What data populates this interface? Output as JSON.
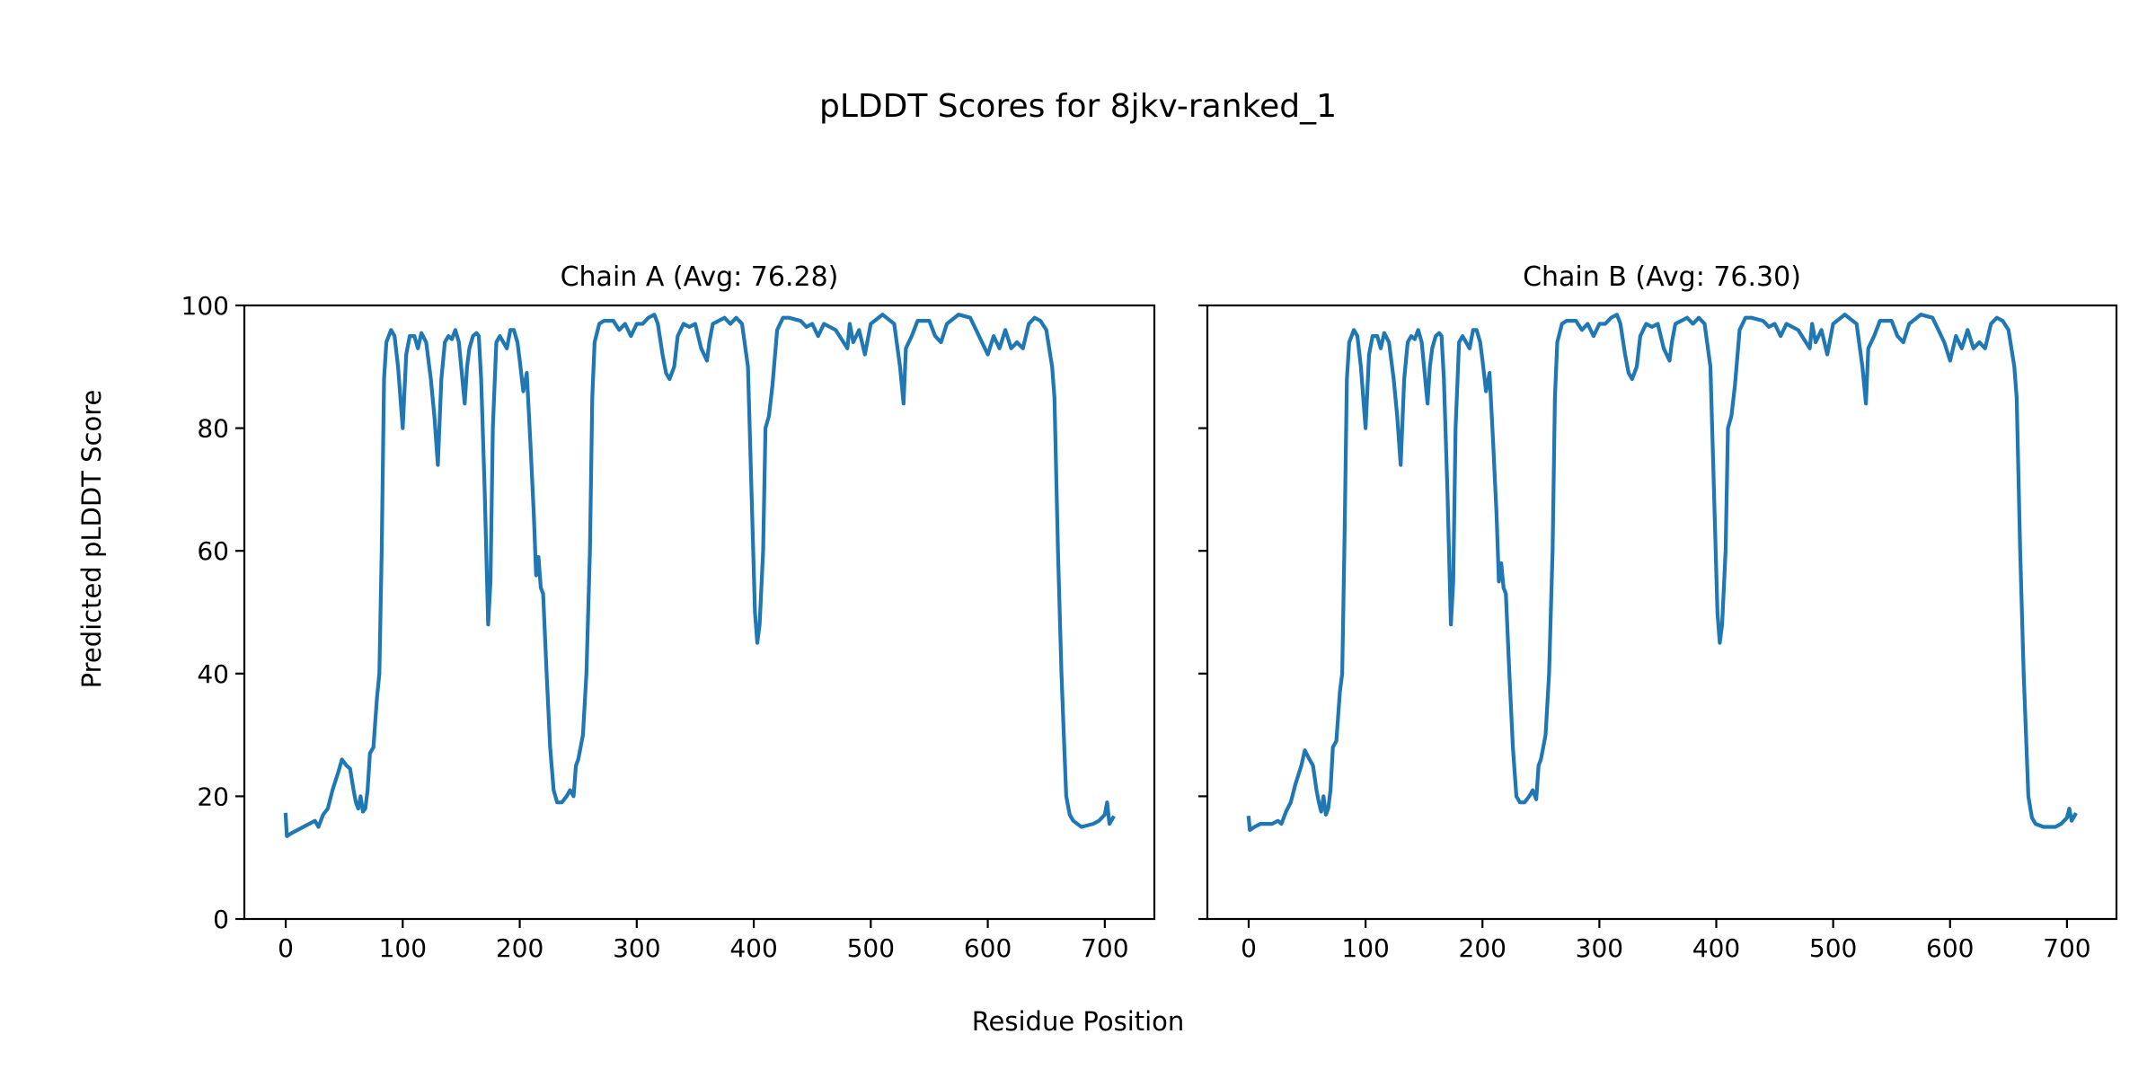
{
  "chart_data": {
    "type": "line",
    "title": "pLDDT Scores for 8jkv-ranked_1",
    "xlabel": "Residue Position",
    "ylabel": "Predicted pLDDT Score",
    "ylim": [
      0,
      100
    ],
    "xlim": [
      -35.35,
      742.35
    ],
    "x_ticks": [
      0,
      100,
      200,
      300,
      400,
      500,
      600,
      700
    ],
    "y_ticks": [
      0,
      20,
      40,
      60,
      80,
      100
    ],
    "grid": false,
    "line_color": "#1f77b4",
    "panels": [
      {
        "title": "Chain A (Avg: 76.28)",
        "series": {
          "x": [
            0,
            1,
            5,
            10,
            15,
            20,
            25,
            28,
            32,
            36,
            40,
            45,
            48,
            52,
            55,
            58,
            60,
            62,
            64,
            66,
            68,
            70,
            72,
            75,
            78,
            80,
            82,
            84,
            86,
            90,
            93,
            96,
            100,
            103,
            106,
            110,
            113,
            116,
            120,
            124,
            127,
            130,
            133,
            136,
            139,
            142,
            145,
            148,
            150,
            153,
            155,
            157,
            160,
            163,
            165,
            167,
            170,
            173,
            175,
            177,
            180,
            183,
            186,
            189,
            192,
            195,
            198,
            200,
            203,
            206,
            209,
            212,
            214,
            216,
            218,
            220,
            223,
            226,
            229,
            232,
            236,
            240,
            243,
            246,
            248,
            250,
            252,
            254,
            257,
            260,
            262,
            264,
            268,
            272,
            280,
            285,
            290,
            295,
            300,
            305,
            310,
            315,
            318,
            322,
            325,
            328,
            332,
            335,
            340,
            345,
            350,
            355,
            360,
            362,
            365,
            370,
            375,
            380,
            385,
            390,
            395,
            398,
            401,
            403,
            405,
            408,
            410,
            413,
            416,
            420,
            425,
            430,
            440,
            445,
            450,
            455,
            460,
            470,
            480,
            482,
            485,
            490,
            495,
            500,
            510,
            520,
            525,
            528,
            530,
            535,
            540,
            550,
            555,
            560,
            565,
            575,
            585,
            590,
            595,
            600,
            605,
            610,
            615,
            620,
            625,
            630,
            635,
            640,
            645,
            650,
            655,
            657,
            660,
            663,
            665,
            667,
            670,
            673,
            680,
            690,
            695,
            700,
            702,
            704,
            707
          ],
          "y": [
            17,
            13.5,
            14,
            14.5,
            15,
            15.5,
            16,
            15,
            17,
            18,
            21,
            24,
            26,
            25,
            24.5,
            21,
            19,
            18,
            20,
            17.5,
            18,
            21,
            27,
            28,
            36,
            40,
            60,
            88,
            94,
            96,
            95,
            90,
            80,
            92,
            95,
            95,
            93,
            95.5,
            94,
            88,
            82,
            74,
            88,
            94,
            95,
            94.5,
            96,
            94,
            90,
            84,
            90,
            93,
            95,
            95.5,
            95,
            88,
            70,
            48,
            55,
            80,
            94,
            95,
            94,
            93,
            96,
            96,
            94,
            91,
            86,
            89,
            78,
            66,
            56,
            59,
            54,
            53,
            40,
            28,
            21,
            19,
            19,
            20,
            21,
            20,
            25,
            26,
            28,
            30,
            40,
            60,
            85,
            94,
            97,
            97.5,
            97.5,
            96,
            97,
            95,
            97,
            97,
            98,
            98.5,
            97,
            92,
            89,
            88,
            90,
            95,
            97,
            96.5,
            97,
            93,
            91,
            94,
            97,
            97.5,
            98,
            97,
            98,
            97,
            90,
            70,
            50,
            45,
            48,
            60,
            80,
            82,
            87,
            96,
            98,
            98,
            97.5,
            96.5,
            97,
            95,
            97,
            96,
            93,
            97,
            94,
            96,
            92,
            97,
            98.5,
            97,
            90,
            84,
            93,
            95,
            97.5,
            97.5,
            95,
            94,
            97,
            98.5,
            98,
            96,
            94,
            92,
            95,
            93,
            96,
            93,
            94,
            93,
            97,
            98,
            97.5,
            96,
            90,
            85,
            60,
            40,
            30,
            20,
            17,
            16,
            15,
            15.5,
            16,
            17,
            19,
            15.5,
            16.5
          ]
        }
      },
      {
        "title": "Chain B (Avg: 76.30)",
        "series": {
          "x": [
            0,
            1,
            5,
            10,
            15,
            20,
            25,
            28,
            32,
            36,
            40,
            45,
            48,
            52,
            55,
            58,
            60,
            62,
            64,
            66,
            68,
            70,
            72,
            75,
            78,
            80,
            82,
            84,
            86,
            90,
            93,
            96,
            100,
            103,
            106,
            110,
            113,
            116,
            120,
            124,
            127,
            130,
            133,
            136,
            139,
            142,
            145,
            148,
            150,
            153,
            155,
            157,
            160,
            163,
            165,
            167,
            170,
            173,
            175,
            177,
            180,
            183,
            186,
            189,
            192,
            195,
            198,
            200,
            203,
            206,
            209,
            212,
            214,
            216,
            218,
            220,
            223,
            226,
            229,
            232,
            236,
            240,
            243,
            246,
            248,
            250,
            252,
            254,
            257,
            260,
            262,
            264,
            268,
            272,
            280,
            285,
            290,
            295,
            300,
            305,
            310,
            315,
            318,
            322,
            325,
            328,
            332,
            335,
            340,
            345,
            350,
            355,
            360,
            362,
            365,
            370,
            375,
            380,
            385,
            390,
            395,
            398,
            401,
            403,
            405,
            408,
            410,
            413,
            416,
            420,
            425,
            430,
            440,
            445,
            450,
            455,
            460,
            470,
            480,
            482,
            485,
            490,
            495,
            500,
            510,
            520,
            525,
            528,
            530,
            535,
            540,
            550,
            555,
            560,
            565,
            575,
            585,
            590,
            595,
            600,
            605,
            610,
            615,
            620,
            625,
            630,
            635,
            640,
            645,
            650,
            655,
            657,
            660,
            663,
            665,
            667,
            670,
            673,
            680,
            690,
            695,
            700,
            702,
            704,
            707
          ],
          "y": [
            16.5,
            14.5,
            15,
            15.5,
            15.5,
            15.5,
            16,
            15.5,
            17.5,
            19,
            22,
            25,
            27.5,
            26,
            25,
            21,
            19,
            17.5,
            20,
            17,
            18,
            21,
            28,
            29,
            37,
            40,
            62,
            88,
            94,
            96,
            95,
            90,
            80,
            92,
            95,
            95,
            93,
            95.5,
            94,
            88,
            82,
            74,
            88,
            94,
            95,
            94.5,
            96,
            94,
            90,
            84,
            90,
            93,
            95,
            95.5,
            95,
            88,
            70,
            48,
            55,
            80,
            94,
            95,
            94,
            93,
            96,
            96,
            94,
            91,
            86,
            89,
            78,
            66,
            55,
            58,
            54,
            53,
            40,
            28,
            20,
            19,
            19,
            20,
            21,
            19.5,
            25,
            26,
            28,
            30,
            40,
            60,
            85,
            94,
            97,
            97.5,
            97.5,
            96,
            97,
            95,
            97,
            97,
            98,
            98.5,
            97,
            92,
            89,
            88,
            90,
            95,
            97,
            96.5,
            97,
            93,
            91,
            94,
            97,
            97.5,
            98,
            97,
            98,
            97,
            90,
            70,
            50,
            45,
            48,
            60,
            80,
            82,
            87,
            96,
            98,
            98,
            97.5,
            96.5,
            97,
            95,
            97,
            96,
            93,
            97,
            94,
            96,
            92,
            97,
            98.5,
            97,
            90,
            84,
            93,
            95,
            97.5,
            97.5,
            95,
            94,
            97,
            98.5,
            98,
            96,
            94,
            91,
            95,
            93,
            96,
            93,
            94,
            93,
            97,
            98,
            97.5,
            96,
            90,
            85,
            60,
            40,
            30,
            20,
            16.5,
            15.5,
            15,
            15,
            15.5,
            16.5,
            18,
            16,
            17
          ]
        }
      }
    ]
  }
}
